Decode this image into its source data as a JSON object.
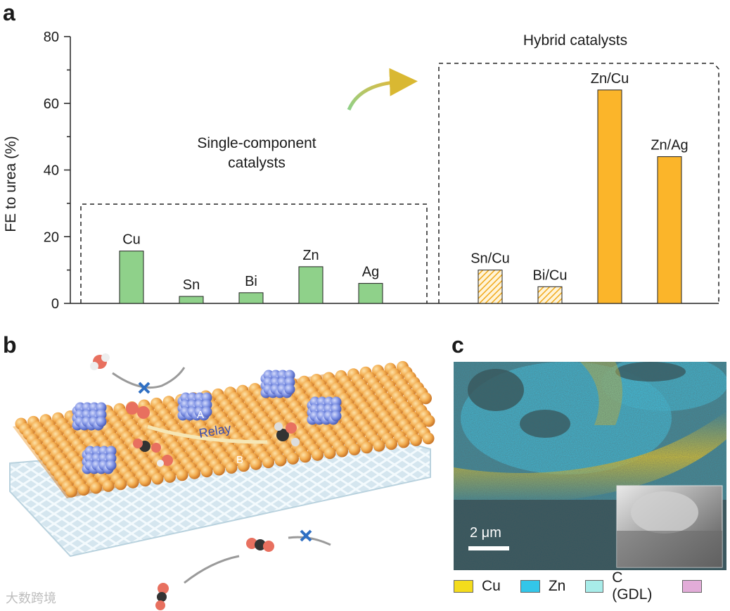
{
  "panels": {
    "a": "a",
    "b": "b",
    "c": "c"
  },
  "chart_data": {
    "type": "bar",
    "ylabel": "FE to urea (%)",
    "ylim": [
      0,
      80
    ],
    "yticks": [
      0,
      20,
      40,
      60,
      80
    ],
    "categories": [
      "Cu",
      "Sn",
      "Bi",
      "Zn",
      "Ag",
      "Sn/Cu",
      "Bi/Cu",
      "Zn/Cu",
      "Zn/Ag"
    ],
    "values": [
      15.7,
      2.1,
      3.2,
      11,
      6,
      10,
      5,
      64,
      44
    ],
    "groups": [
      {
        "label": "Single-component\ncatalysts",
        "categories": [
          "Cu",
          "Sn",
          "Bi",
          "Zn",
          "Ag"
        ]
      },
      {
        "label": "Hybrid catalysts",
        "categories": [
          "Sn/Cu",
          "Bi/Cu",
          "Zn/Cu",
          "Zn/Ag"
        ]
      }
    ],
    "styles": [
      "solid-green",
      "solid-green",
      "solid-green",
      "solid-green",
      "solid-green",
      "hatched-orange",
      "hatched-orange",
      "solid-orange",
      "solid-orange"
    ],
    "colors": {
      "green": "#8fd18a",
      "orange": "#fbb52a"
    }
  },
  "schematic": {
    "label_a": "A",
    "label_b": "B",
    "relay": "Relay"
  },
  "micrograph": {
    "scale": "2 μm"
  },
  "legend": [
    {
      "label": "Cu",
      "color": "#f4dc1c"
    },
    {
      "label": "Zn",
      "color": "#33c6e9"
    },
    {
      "label": "C (GDL)",
      "color": "#a8ece9"
    },
    {
      "label": "",
      "color": "#e2acd8"
    }
  ],
  "watermark": "大数跨境"
}
